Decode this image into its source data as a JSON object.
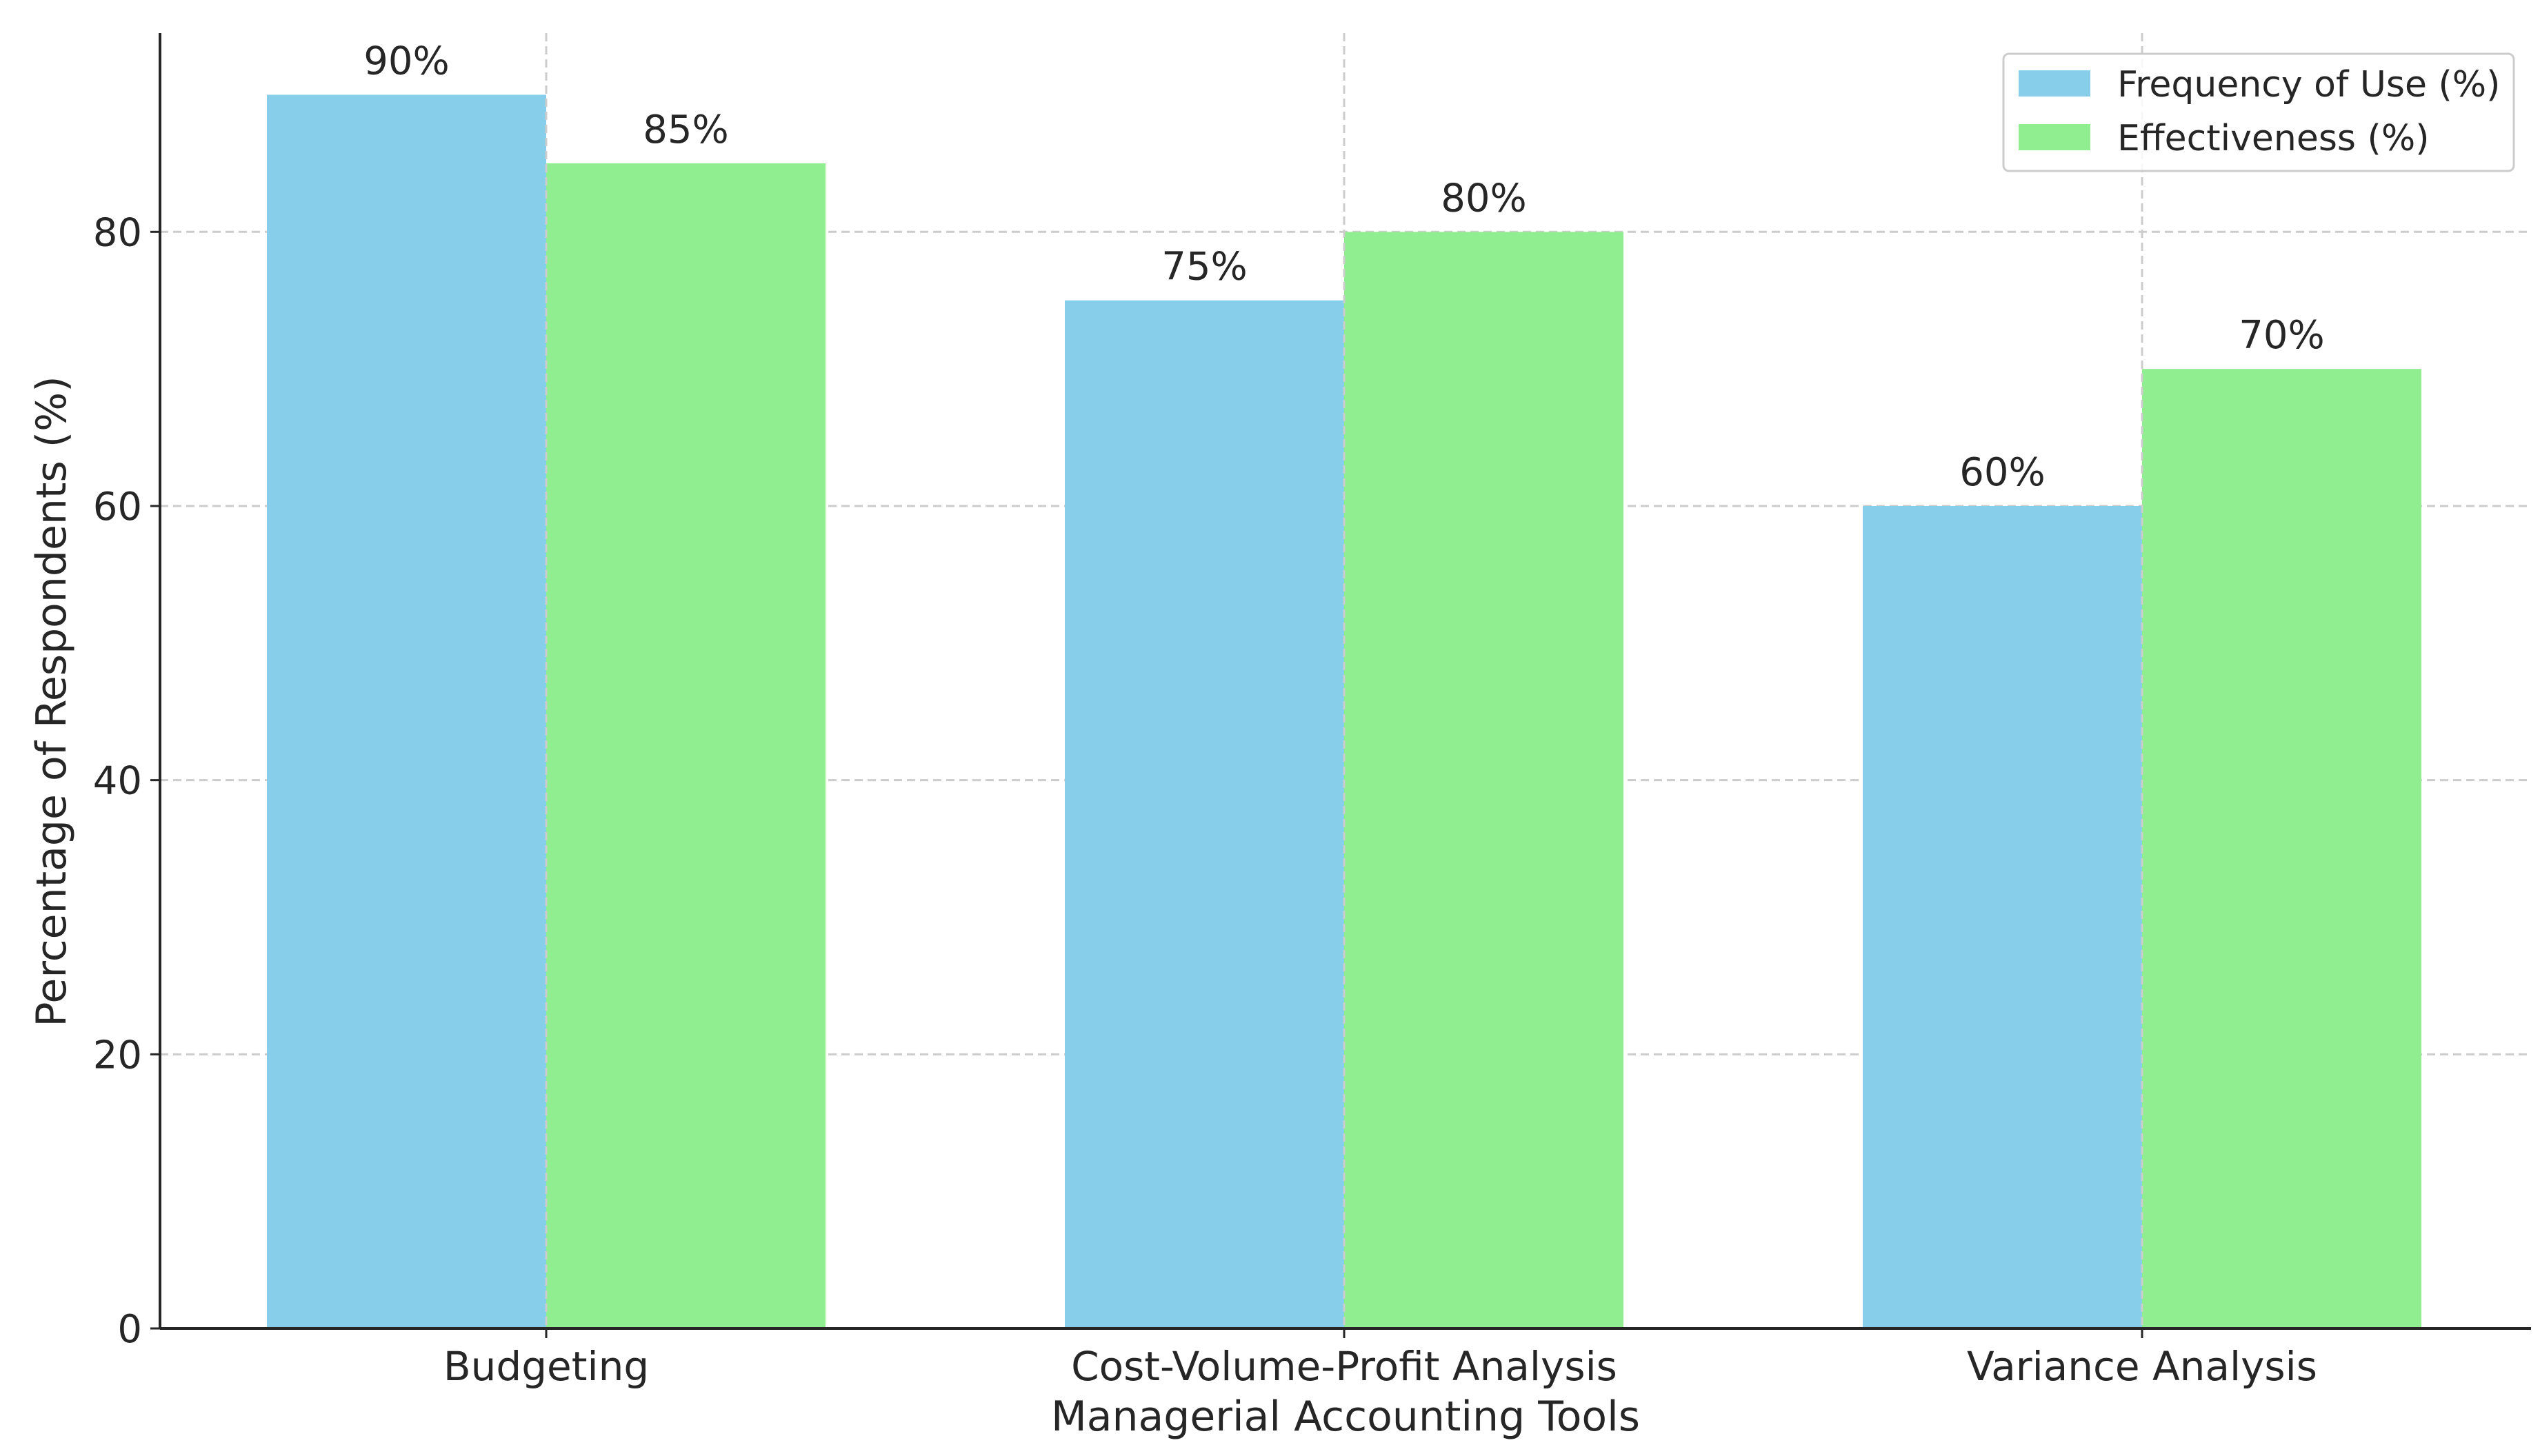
{
  "chart_data": {
    "type": "bar",
    "title": "",
    "xlabel": "Managerial Accounting Tools",
    "ylabel": "Percentage of Respondents (%)",
    "categories": [
      "Budgeting",
      "Cost-Volume-Profit Analysis",
      "Variance Analysis"
    ],
    "series": [
      {
        "name": "Frequency of Use (%)",
        "values": [
          90,
          75,
          60
        ],
        "color": "#87ceeb",
        "data_labels": [
          "90%",
          "75%",
          "60%"
        ]
      },
      {
        "name": "Effectiveness (%)",
        "values": [
          85,
          80,
          70
        ],
        "color": "#90ee90",
        "data_labels": [
          "85%",
          "80%",
          "70%"
        ]
      }
    ],
    "ylim": [
      0,
      94.5
    ],
    "yticks": [
      0,
      20,
      40,
      60,
      80
    ],
    "ytick_labels": [
      "0",
      "20",
      "40",
      "60",
      "80"
    ],
    "grid": true,
    "grid_style": "dashed",
    "legend_position": "top-right"
  }
}
